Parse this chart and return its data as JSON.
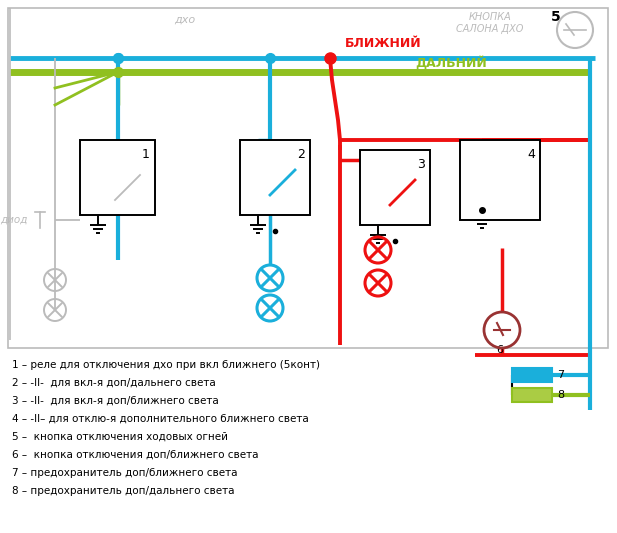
{
  "bg_color": "#ffffff",
  "fig_width": 6.17,
  "fig_height": 5.33,
  "dpi": 100,
  "labels": {
    "dho_top": "дхо",
    "knopka": "КНОПКА\nСАЛОНА ДХО",
    "num5": "5",
    "blizhny": "БЛИЖНИЙ",
    "dalny": "ДАЛЬНИЙ",
    "diod": "диод",
    "elem6": "6",
    "elem7": "7",
    "elem8": "8"
  },
  "legend": [
    "1 – реле для отключения дхо при вкл ближнего (5конт)",
    "2 – -II-  для вкл-я доп/дальнего света",
    "3 – -II-  для вкл-я доп/ближнего света",
    "4 – -II– для отклю-я дополнительного ближнего света",
    "5 –  кнопка отключения ходовых огней",
    "6 –  кнопка отключения доп/ближнего света",
    "7 – предохранитель доп/ближнего света",
    "8 – предохранитель доп/дальнего света"
  ],
  "colors": {
    "blue": "#1aafdb",
    "cyan": "#1aafdb",
    "red": "#ee1111",
    "green": "#90c020",
    "gray": "#bbbbbb",
    "black": "#000000",
    "darkred": "#cc3333"
  }
}
